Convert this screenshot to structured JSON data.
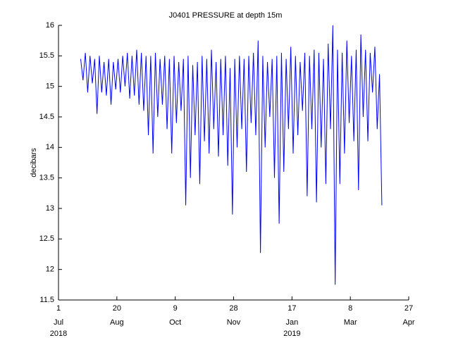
{
  "chart_data": {
    "type": "line",
    "title": "J0401 PRESSURE at depth 15m",
    "y_label": "decibars",
    "xlim": [
      "2018-07-01",
      "2019-04-27"
    ],
    "xticks": [
      {
        "value": "2018-07-01",
        "label": "1"
      },
      {
        "value": "2018-08-20",
        "label": "20"
      },
      {
        "value": "2018-10-09",
        "label": "9"
      },
      {
        "value": "2018-11-28",
        "label": "28"
      },
      {
        "value": "2019-01-17",
        "label": "17"
      },
      {
        "value": "2019-03-08",
        "label": "8"
      },
      {
        "value": "2019-04-27",
        "label": "27"
      }
    ],
    "xtick_months": [
      "Jul",
      "Aug",
      "Oct",
      "Nov",
      "Jan",
      "Mar",
      "Apr"
    ],
    "xtick_years": [
      {
        "value": "2018-07-01",
        "label": "2018"
      },
      {
        "value": "2019-01-17",
        "label": "2019"
      }
    ],
    "ylim": [
      11.5,
      16
    ],
    "yticks": [
      11.5,
      12,
      12.5,
      13,
      13.5,
      14,
      14.5,
      15,
      15.5,
      16
    ],
    "grid": false,
    "series": [
      {
        "name": "PRESSURE",
        "color": "#0000ff",
        "x": [
          "2018-07-20",
          "2018-07-22",
          "2018-07-24",
          "2018-07-26",
          "2018-07-28",
          "2018-07-30",
          "2018-08-01",
          "2018-08-03",
          "2018-08-05",
          "2018-08-07",
          "2018-08-09",
          "2018-08-11",
          "2018-08-13",
          "2018-08-15",
          "2018-08-17",
          "2018-08-19",
          "2018-08-21",
          "2018-08-23",
          "2018-08-25",
          "2018-08-27",
          "2018-08-29",
          "2018-08-31",
          "2018-09-02",
          "2018-09-04",
          "2018-09-06",
          "2018-09-08",
          "2018-09-10",
          "2018-09-12",
          "2018-09-14",
          "2018-09-16",
          "2018-09-18",
          "2018-09-20",
          "2018-09-22",
          "2018-09-24",
          "2018-09-26",
          "2018-09-28",
          "2018-09-30",
          "2018-10-02",
          "2018-10-04",
          "2018-10-06",
          "2018-10-08",
          "2018-10-10",
          "2018-10-12",
          "2018-10-14",
          "2018-10-16",
          "2018-10-18",
          "2018-10-20",
          "2018-10-22",
          "2018-10-24",
          "2018-10-26",
          "2018-10-28",
          "2018-10-30",
          "2018-11-01",
          "2018-11-03",
          "2018-11-05",
          "2018-11-07",
          "2018-11-09",
          "2018-11-11",
          "2018-11-13",
          "2018-11-15",
          "2018-11-17",
          "2018-11-19",
          "2018-11-21",
          "2018-11-23",
          "2018-11-25",
          "2018-11-27",
          "2018-11-29",
          "2018-12-01",
          "2018-12-03",
          "2018-12-05",
          "2018-12-07",
          "2018-12-09",
          "2018-12-11",
          "2018-12-13",
          "2018-12-15",
          "2018-12-17",
          "2018-12-19",
          "2018-12-21",
          "2018-12-23",
          "2018-12-25",
          "2018-12-27",
          "2018-12-29",
          "2018-12-31",
          "2019-01-02",
          "2019-01-04",
          "2019-01-06",
          "2019-01-08",
          "2019-01-10",
          "2019-01-12",
          "2019-01-14",
          "2019-01-16",
          "2019-01-18",
          "2019-01-20",
          "2019-01-22",
          "2019-01-24",
          "2019-01-26",
          "2019-01-28",
          "2019-01-30",
          "2019-02-01",
          "2019-02-03",
          "2019-02-05",
          "2019-02-07",
          "2019-02-09",
          "2019-02-11",
          "2019-02-13",
          "2019-02-15",
          "2019-02-17",
          "2019-02-19",
          "2019-02-21",
          "2019-02-23",
          "2019-02-25",
          "2019-02-27",
          "2019-03-01",
          "2019-03-03",
          "2019-03-05",
          "2019-03-07",
          "2019-03-09",
          "2019-03-11",
          "2019-03-13",
          "2019-03-15",
          "2019-03-17",
          "2019-03-19",
          "2019-03-21",
          "2019-03-23",
          "2019-03-25",
          "2019-03-27",
          "2019-03-29",
          "2019-03-31",
          "2019-04-02",
          "2019-04-04"
        ],
        "values": [
          15.45,
          15.1,
          15.55,
          14.9,
          15.5,
          15.05,
          15.45,
          14.55,
          15.5,
          14.9,
          15.4,
          14.85,
          15.45,
          14.7,
          15.4,
          14.95,
          15.45,
          14.9,
          15.5,
          15.0,
          15.55,
          14.8,
          15.5,
          14.85,
          15.6,
          14.7,
          15.55,
          14.6,
          15.5,
          14.2,
          15.5,
          13.9,
          15.55,
          14.5,
          15.45,
          14.7,
          15.5,
          14.3,
          15.45,
          13.9,
          15.5,
          14.4,
          15.4,
          14.6,
          15.45,
          13.05,
          15.5,
          13.5,
          15.35,
          14.2,
          15.4,
          13.4,
          15.5,
          14.1,
          15.45,
          13.9,
          15.6,
          14.3,
          15.4,
          13.85,
          15.45,
          14.2,
          15.5,
          13.7,
          15.3,
          12.9,
          15.45,
          14.0,
          15.5,
          14.3,
          15.45,
          13.6,
          15.5,
          14.4,
          15.55,
          14.2,
          15.75,
          12.27,
          15.5,
          14.0,
          15.4,
          14.5,
          15.45,
          13.5,
          15.5,
          12.75,
          15.55,
          13.6,
          15.45,
          14.3,
          15.65,
          13.9,
          15.5,
          14.2,
          15.4,
          14.6,
          15.55,
          13.2,
          15.5,
          14.3,
          15.6,
          13.1,
          15.55,
          14.0,
          15.45,
          13.4,
          15.7,
          14.3,
          16.0,
          11.75,
          15.6,
          13.4,
          15.55,
          13.9,
          15.75,
          14.4,
          15.5,
          14.1,
          15.6,
          13.3,
          15.85,
          14.5,
          15.6,
          14.1,
          15.55,
          14.9,
          15.65,
          14.3,
          15.2,
          13.05
        ]
      }
    ]
  }
}
